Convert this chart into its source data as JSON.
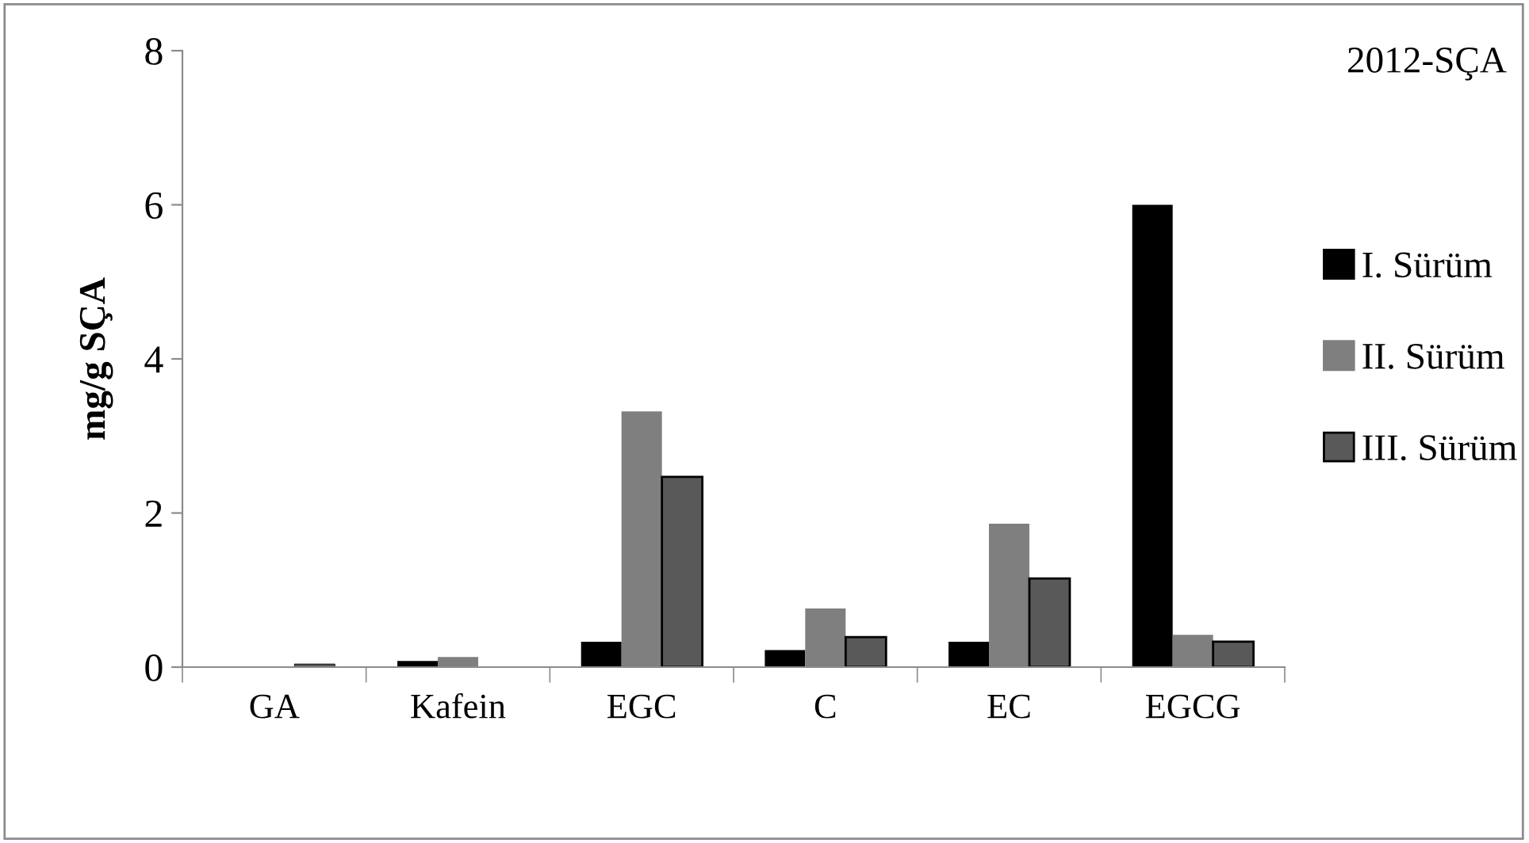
{
  "chart_data": {
    "type": "bar",
    "title": "2012-SÇA",
    "ylabel": "mg/g SÇA",
    "categories": [
      "GA",
      "Kafein",
      "EGC",
      "C",
      "EC",
      "EGCG"
    ],
    "series": [
      {
        "name": "I. Sürüm",
        "color": "#000000",
        "values": [
          null,
          0.08,
          0.33,
          0.22,
          0.33,
          6.0
        ]
      },
      {
        "name": "II. Sürüm",
        "color": "#7f7f7f",
        "values": [
          null,
          0.13,
          3.32,
          0.76,
          1.86,
          0.42
        ]
      },
      {
        "name": "III. Sürüm",
        "color": "#595959",
        "values": [
          0.04,
          null,
          2.47,
          0.39,
          1.15,
          0.33
        ]
      }
    ],
    "ylim": [
      0,
      8
    ],
    "yticks": [
      0,
      2,
      4,
      6,
      8
    ],
    "grid": false,
    "legend": "right"
  }
}
